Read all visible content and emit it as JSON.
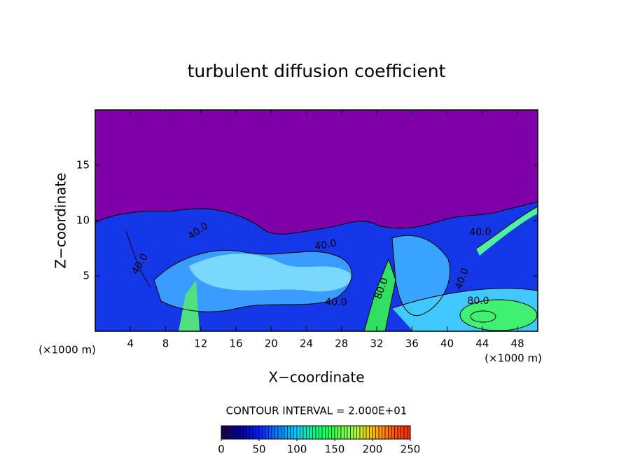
{
  "chart_data": {
    "type": "contour",
    "title": "turbulent diffusion coefficient",
    "x_label": "X−coordinate",
    "y_label": "Z−coordinate",
    "x_unit_left": "(×1000 m)",
    "x_unit_right": "(×1000 m)",
    "xlim": [
      0,
      50.3
    ],
    "xticks": [
      4,
      8,
      12,
      16,
      20,
      24,
      28,
      32,
      36,
      40,
      44,
      48
    ],
    "ylim": [
      0,
      20
    ],
    "yticks": [
      5,
      10,
      15
    ],
    "contour_interval_text": "CONTOUR INTERVAL = 2.000E+01",
    "contour_labels": [
      {
        "value": 40,
        "label": "40.0"
      },
      {
        "value": 40,
        "label": "40.0"
      },
      {
        "value": 40,
        "label": "40.0"
      },
      {
        "value": 40,
        "label": "40.0"
      },
      {
        "value": 80,
        "label": "80.0"
      },
      {
        "value": 40,
        "label": "40.0"
      },
      {
        "value": 80,
        "label": "80.0"
      },
      {
        "value": 40,
        "label": "40.0"
      }
    ],
    "colorbar": {
      "lim": [
        0,
        250
      ],
      "ticks": [
        0,
        50,
        100,
        150,
        200,
        250
      ],
      "colors": [
        "#200040",
        "#0000a0",
        "#0020ff",
        "#0080ff",
        "#00d0ff",
        "#00ff80",
        "#40ff40",
        "#a0ff40",
        "#ffc000",
        "#ff6000",
        "#ff2000"
      ]
    }
  }
}
